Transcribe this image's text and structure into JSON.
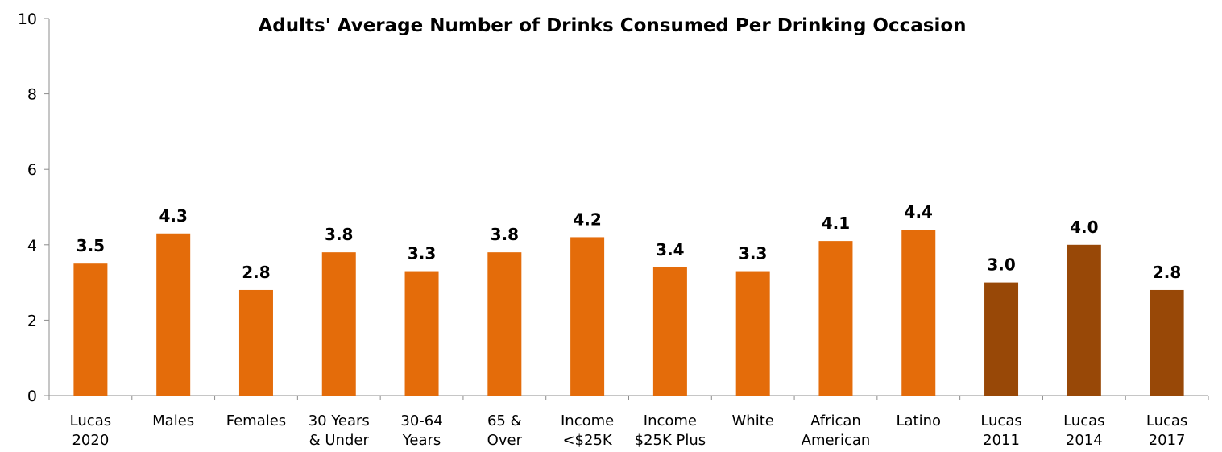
{
  "chart_data": {
    "type": "bar",
    "title": "Adults' Average Number of Drinks Consumed Per Drinking Occasion",
    "xlabel": "",
    "ylabel": "",
    "ylim": [
      0,
      10
    ],
    "yticks": [
      0,
      2,
      4,
      6,
      8,
      10
    ],
    "grid": false,
    "legend": "none",
    "categories": [
      [
        "Lucas",
        "2020"
      ],
      [
        "Males"
      ],
      [
        "Females"
      ],
      [
        "30 Years",
        "& Under"
      ],
      [
        "30-64",
        "Years"
      ],
      [
        "65 &",
        "Over"
      ],
      [
        "Income",
        "<$25K"
      ],
      [
        "Income",
        "$25K Plus"
      ],
      [
        "White"
      ],
      [
        "African",
        "American"
      ],
      [
        "Latino"
      ],
      [
        "Lucas",
        "2011"
      ],
      [
        "Lucas",
        "2014"
      ],
      [
        "Lucas",
        "2017"
      ]
    ],
    "values": [
      3.5,
      4.3,
      2.8,
      3.8,
      3.3,
      3.8,
      4.2,
      3.4,
      3.3,
      4.1,
      4.4,
      3.0,
      4.0,
      2.8
    ],
    "data_labels": [
      "3.5",
      "4.3",
      "2.8",
      "3.8",
      "3.3",
      "3.8",
      "4.2",
      "3.4",
      "3.3",
      "4.1",
      "4.4",
      "3.0",
      "4.0",
      "2.8"
    ],
    "bar_colors": [
      "#e46c0a",
      "#e46c0a",
      "#e46c0a",
      "#e46c0a",
      "#e46c0a",
      "#e46c0a",
      "#e46c0a",
      "#e46c0a",
      "#e46c0a",
      "#e46c0a",
      "#e46c0a",
      "#984807",
      "#984807",
      "#984807"
    ]
  }
}
